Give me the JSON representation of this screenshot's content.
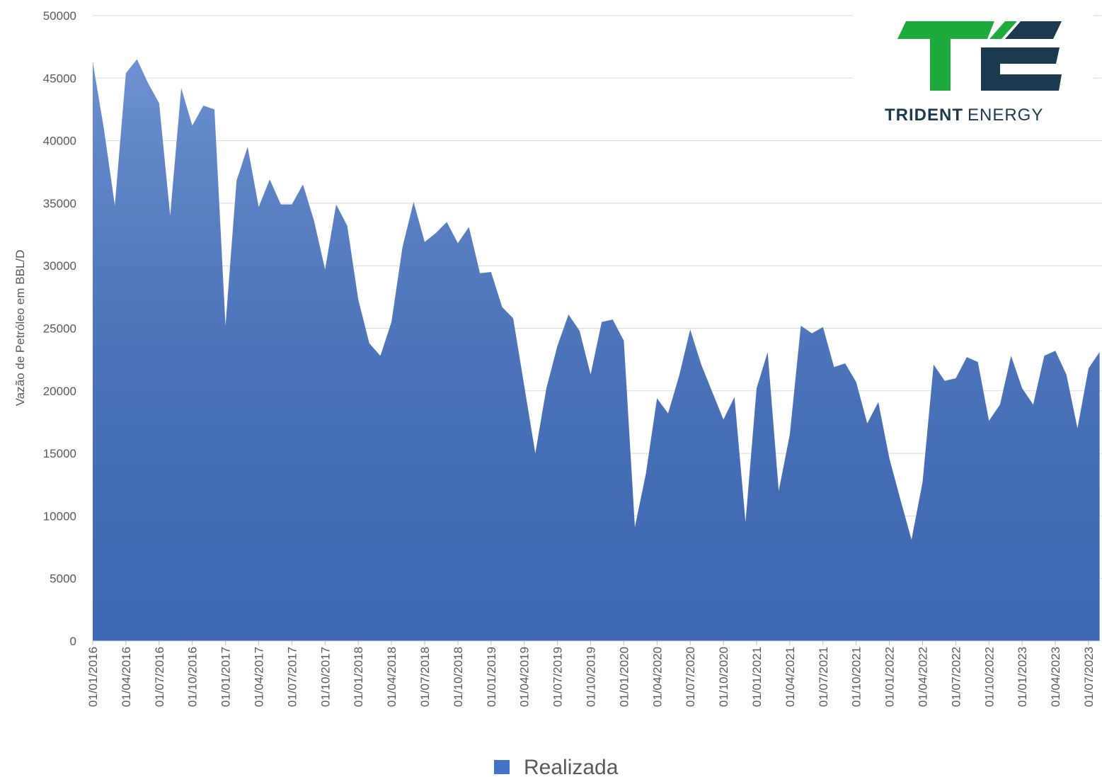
{
  "chart_data": {
    "type": "area",
    "y_label": "Vazão de Petróleo em BBL/D",
    "categories": [
      "01/01/2016",
      null,
      null,
      "01/04/2016",
      null,
      null,
      "01/07/2016",
      null,
      null,
      "01/10/2016",
      null,
      null,
      "01/01/2017",
      null,
      null,
      "01/04/2017",
      null,
      null,
      "01/07/2017",
      null,
      null,
      "01/10/2017",
      null,
      null,
      "01/01/2018",
      null,
      null,
      "01/04/2018",
      null,
      null,
      "01/07/2018",
      null,
      null,
      "01/10/2018",
      null,
      null,
      "01/01/2019",
      null,
      null,
      "01/04/2019",
      null,
      null,
      "01/07/2019",
      null,
      null,
      "01/10/2019",
      null,
      null,
      "01/01/2020",
      null,
      null,
      "01/04/2020",
      null,
      null,
      "01/07/2020",
      null,
      null,
      "01/10/2020",
      null,
      null,
      "01/01/2021",
      null,
      null,
      "01/04/2021",
      null,
      null,
      "01/07/2021",
      null,
      null,
      "01/10/2021",
      null,
      null,
      "01/01/2022",
      null,
      null,
      "01/04/2022",
      null,
      null,
      "01/07/2022",
      null,
      null,
      "01/10/2022",
      null,
      null,
      "01/01/2023",
      null,
      null,
      "01/04/2023",
      null,
      null,
      "01/07/2023",
      null
    ],
    "series": [
      {
        "name": "Realizada",
        "color": "#4472c4",
        "values": [
          46300,
          41000,
          34800,
          45400,
          46500,
          44600,
          43000,
          34000,
          44200,
          41200,
          42800,
          42500,
          25200,
          36800,
          39500,
          34700,
          36900,
          34900,
          34900,
          36500,
          33600,
          29700,
          34900,
          33200,
          27300,
          23800,
          22800,
          25500,
          31500,
          35100,
          31900,
          32600,
          33500,
          31800,
          33100,
          29400,
          29500,
          26700,
          25800,
          20400,
          15000,
          20200,
          23600,
          26100,
          24800,
          21300,
          25500,
          25700,
          24000,
          9100,
          13400,
          19400,
          18200,
          21200,
          24900,
          22100,
          19900,
          17700,
          19500,
          9500,
          20200,
          23100,
          12000,
          16500,
          25200,
          24600,
          25100,
          21900,
          22200,
          20700,
          17400,
          19100,
          14600,
          11300,
          8100,
          12700,
          22100,
          20800,
          21000,
          22700,
          22300,
          17600,
          18900,
          22800,
          20200,
          18900,
          22800,
          23200,
          21300,
          17000,
          21800,
          23100
        ]
      }
    ],
    "ylim": [
      0,
      50000
    ],
    "yticks": [
      0,
      5000,
      10000,
      15000,
      20000,
      25000,
      30000,
      35000,
      40000,
      45000,
      50000
    ],
    "grid": true,
    "legend": "bottom"
  },
  "logo": {
    "brand": [
      "TRIDENT",
      "ENERGY"
    ]
  }
}
